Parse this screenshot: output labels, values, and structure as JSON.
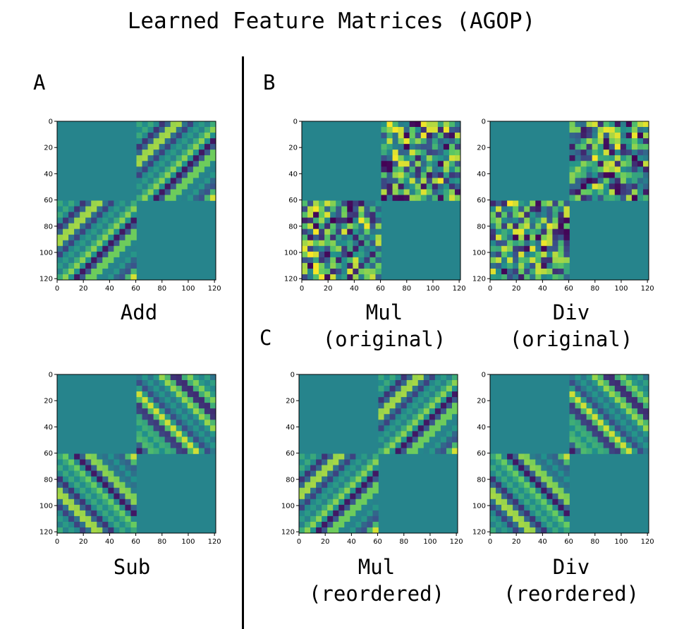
{
  "title": "Learned Feature Matrices (AGOP)",
  "labels": {
    "a": "A",
    "b": "B",
    "c": "C"
  },
  "colors": {
    "colormap": "viridis",
    "background_value": "#2a7b7a",
    "divider": "#000000"
  },
  "chart_data": [
    {
      "type": "heatmap",
      "id": "add",
      "caption": [
        "Add"
      ],
      "size": 122,
      "ticks": [
        0,
        20,
        40,
        60,
        80,
        100,
        120
      ],
      "xlim": [
        0,
        121
      ],
      "ylim": [
        121,
        0
      ],
      "block_split": 61,
      "structure": {
        "diagonal_blocks": "uniform",
        "off_diagonal_blocks": "anti-diagonal stripes"
      }
    },
    {
      "type": "heatmap",
      "id": "mul-original",
      "caption": [
        "Mul",
        "(original)"
      ],
      "size": 122,
      "ticks": [
        0,
        20,
        40,
        60,
        80,
        100,
        120
      ],
      "xlim": [
        0,
        121
      ],
      "ylim": [
        121,
        0
      ],
      "block_split": 61,
      "structure": {
        "diagonal_blocks": "uniform",
        "off_diagonal_blocks": "random speckle"
      }
    },
    {
      "type": "heatmap",
      "id": "div-original",
      "caption": [
        "Div",
        "(original)"
      ],
      "size": 122,
      "ticks": [
        0,
        20,
        40,
        60,
        80,
        100,
        120
      ],
      "xlim": [
        0,
        121
      ],
      "ylim": [
        121,
        0
      ],
      "block_split": 61,
      "structure": {
        "diagonal_blocks": "uniform",
        "off_diagonal_blocks": "random speckle"
      }
    },
    {
      "type": "heatmap",
      "id": "sub",
      "caption": [
        "Sub"
      ],
      "size": 122,
      "ticks": [
        0,
        20,
        40,
        60,
        80,
        100,
        120
      ],
      "xlim": [
        0,
        121
      ],
      "ylim": [
        121,
        0
      ],
      "block_split": 61,
      "structure": {
        "diagonal_blocks": "uniform",
        "off_diagonal_blocks": "diagonal stripes"
      }
    },
    {
      "type": "heatmap",
      "id": "mul-reordered",
      "caption": [
        "Mul",
        "(reordered)"
      ],
      "size": 122,
      "ticks": [
        0,
        20,
        40,
        60,
        80,
        100,
        120
      ],
      "xlim": [
        0,
        121
      ],
      "ylim": [
        121,
        0
      ],
      "block_split": 61,
      "structure": {
        "diagonal_blocks": "uniform",
        "off_diagonal_blocks": "anti-diagonal stripes"
      }
    },
    {
      "type": "heatmap",
      "id": "div-reordered",
      "caption": [
        "Div",
        "(reordered)"
      ],
      "size": 122,
      "ticks": [
        0,
        20,
        40,
        60,
        80,
        100,
        120
      ],
      "xlim": [
        0,
        121
      ],
      "ylim": [
        121,
        0
      ],
      "block_split": 61,
      "structure": {
        "diagonal_blocks": "uniform",
        "off_diagonal_blocks": "diagonal stripes"
      }
    }
  ]
}
